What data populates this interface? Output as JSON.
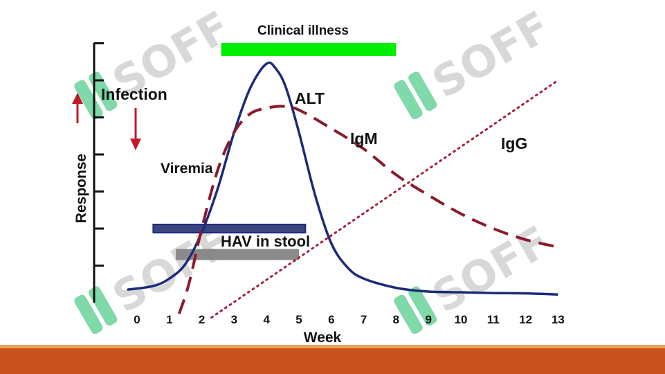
{
  "chart_data": {
    "type": "line",
    "title": "",
    "xlabel": "Week",
    "ylabel": "Response",
    "xlim": [
      0,
      13
    ],
    "x_ticks": [
      0,
      1,
      2,
      3,
      4,
      5,
      6,
      7,
      8,
      9,
      10,
      11,
      12,
      13
    ],
    "y_range": [
      0,
      7
    ],
    "y_ticks": [
      1,
      2,
      3,
      4,
      5,
      6,
      7
    ],
    "grid": false,
    "legend": "none",
    "series": [
      {
        "name": "ALT",
        "style": "solid",
        "color": "#1c2a7a",
        "x": [
          -0.3,
          0.5,
          1.0,
          1.5,
          2.0,
          2.5,
          3.0,
          3.5,
          4.0,
          4.3,
          4.6,
          5.0,
          5.5,
          6.0,
          6.5,
          7.0,
          8.0,
          9.0,
          10.0,
          11.0,
          12.0,
          13.0
        ],
        "y": [
          0.35,
          0.45,
          0.65,
          1.05,
          1.9,
          3.1,
          4.6,
          5.8,
          6.45,
          6.3,
          5.8,
          4.6,
          2.9,
          1.6,
          0.95,
          0.65,
          0.4,
          0.3,
          0.28,
          0.26,
          0.25,
          0.22
        ]
      },
      {
        "name": "IgM",
        "style": "dashed",
        "color": "#8b1a2b",
        "x": [
          1.3,
          1.6,
          2.0,
          2.5,
          3.0,
          3.5,
          4.0,
          4.5,
          5.0,
          6.0,
          7.0,
          8.0,
          9.0,
          10.0,
          11.0,
          12.0,
          13.0
        ],
        "y": [
          -0.3,
          0.5,
          2.0,
          3.6,
          4.6,
          5.1,
          5.25,
          5.3,
          5.2,
          4.7,
          4.15,
          3.45,
          2.9,
          2.4,
          2.0,
          1.7,
          1.5
        ]
      },
      {
        "name": "IgG",
        "style": "dotted",
        "color": "#a0203a",
        "x": [
          2.3,
          13.0
        ],
        "y": [
          -0.4,
          6.0
        ]
      }
    ],
    "annotations": {
      "clinical_illness": {
        "label": "Clinical illness",
        "x_start": 2.6,
        "x_end": 8.0,
        "color": "#00ee00"
      },
      "viremia": {
        "label": "Viremia",
        "x_start": 0.5,
        "x_end": 5.2,
        "y": 2.0,
        "color": "#3a4580"
      },
      "hav_in_stool": {
        "label": "HAV in stool",
        "x_start": 1.2,
        "x_end": 5.0,
        "y": 1.3,
        "color": "#8a8a8a"
      },
      "infection": {
        "label": "Infection",
        "color": "#c0192a"
      },
      "alt_label": "ALT",
      "igm_label": "IgM",
      "igg_label": "IgG"
    }
  },
  "watermark": {
    "text": "SOFF",
    "brand_color": "#7fd9a8"
  }
}
